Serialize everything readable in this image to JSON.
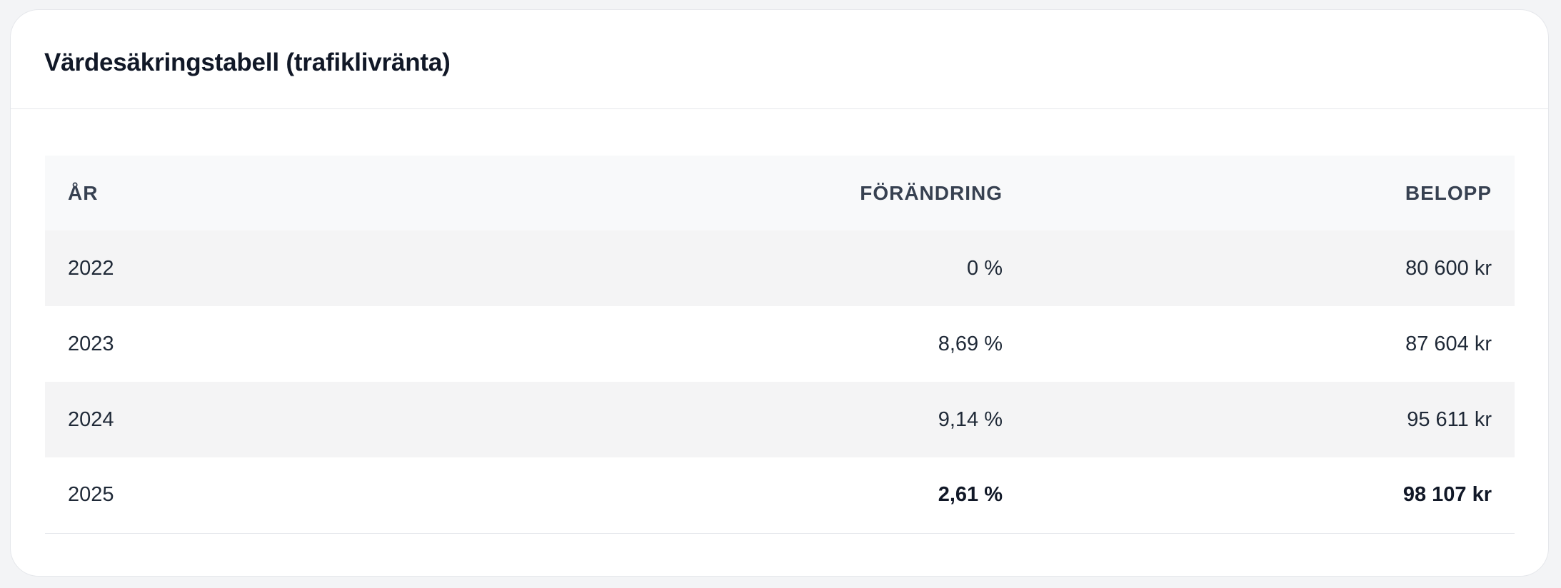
{
  "card": {
    "title": "Värdesäkringstabell (trafiklivränta)"
  },
  "table": {
    "columns": {
      "year": "ÅR",
      "change": "FÖRÄNDRING",
      "amount": "BELOPP"
    },
    "rows": [
      {
        "year": "2022",
        "change": "0 %",
        "amount": "80 600 kr",
        "emphasized": false
      },
      {
        "year": "2023",
        "change": "8,69 %",
        "amount": "87 604 kr",
        "emphasized": false
      },
      {
        "year": "2024",
        "change": "9,14 %",
        "amount": "95 611 kr",
        "emphasized": false
      },
      {
        "year": "2025",
        "change": "2,61 %",
        "amount": "98 107 kr",
        "emphasized": true
      }
    ]
  }
}
